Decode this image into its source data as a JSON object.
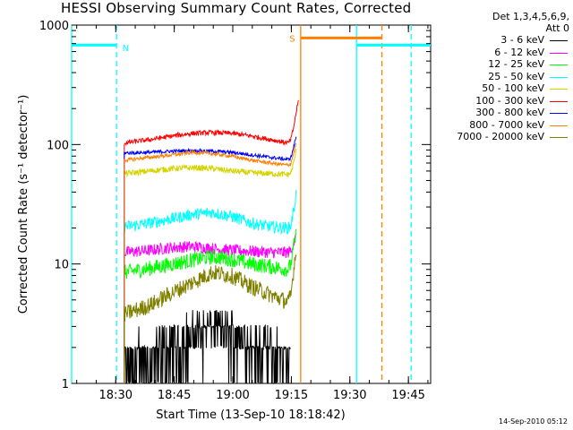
{
  "title": "HESSI Observing Summary Count Rates, Corrected",
  "legend_header": [
    "Det 1,3,4,5,6,9,",
    "Att 0"
  ],
  "datestamp": "14-Sep-2010 05:12",
  "chart_data": {
    "type": "line",
    "title": "HESSI Observing Summary Count Rates, Corrected",
    "xlabel": "Start Time (13-Sep-10 18:18:42)",
    "ylabel": "Corrected Count Rate (s⁻¹ detector⁻¹)",
    "yscale": "log",
    "ylim": [
      1,
      1000
    ],
    "xlim_minutes": [
      0,
      92
    ],
    "x_unit": "minutes after 18:18:42",
    "yticks": [
      {
        "value": 1,
        "label": "1"
      },
      {
        "value": 10,
        "label": "10"
      },
      {
        "value": 100,
        "label": "100"
      },
      {
        "value": 1000,
        "label": "1000"
      }
    ],
    "xticks": [
      {
        "t": 11.3,
        "label": "18:30"
      },
      {
        "t": 26.3,
        "label": "18:45"
      },
      {
        "t": 41.3,
        "label": "19:00"
      },
      {
        "t": 56.3,
        "label": "19:15"
      },
      {
        "t": 71.3,
        "label": "19:30"
      },
      {
        "t": 86.3,
        "label": "19:45"
      }
    ],
    "series": [
      {
        "name": "3 - 6 keV",
        "color": "#000000",
        "noise": 0.35,
        "t": [
          13.5,
          20,
          26,
          31,
          36,
          41,
          46,
          51,
          55.5,
          56.2
        ],
        "values": [
          1.4,
          1.6,
          1.9,
          2.4,
          3.0,
          2.6,
          2.1,
          1.7,
          1.5,
          1.7
        ]
      },
      {
        "name": "6 - 12 keV",
        "color": "#ff00ff",
        "noise": 0.1,
        "t": [
          13.5,
          20,
          26,
          31,
          36,
          41,
          46,
          51,
          55.5,
          56.2,
          56.9,
          57.6
        ],
        "values": [
          12.5,
          13.0,
          13.8,
          14.0,
          13.5,
          13.0,
          12.8,
          12.5,
          12.5,
          13.0,
          15.0,
          17.0
        ]
      },
      {
        "name": "12 - 25 keV",
        "color": "#00ff00",
        "noise": 0.13,
        "t": [
          13.5,
          20,
          26,
          31,
          36,
          41,
          46,
          51,
          55.5,
          56.2,
          56.9,
          57.6
        ],
        "values": [
          8.5,
          9.2,
          10.0,
          10.8,
          11.5,
          11.0,
          10.0,
          9.5,
          9.0,
          10.0,
          14.0,
          18.0
        ]
      },
      {
        "name": "25 - 50 keV",
        "color": "#00ffff",
        "noise": 0.1,
        "t": [
          13.5,
          20,
          26,
          31,
          36,
          41,
          46,
          51,
          55.5,
          56.2,
          56.9,
          57.6
        ],
        "values": [
          20.5,
          22.0,
          24.0,
          26.0,
          27.0,
          25.0,
          22.0,
          20.5,
          20.0,
          21.0,
          28.0,
          40.0
        ]
      },
      {
        "name": "50 - 100 keV",
        "color": "#d4d400",
        "noise": 0.05,
        "t": [
          13.5,
          20,
          26,
          31,
          36,
          41,
          46,
          51,
          55.5,
          56.2,
          56.9,
          57.6
        ],
        "values": [
          57.0,
          60.0,
          63.0,
          64.0,
          63.0,
          60.0,
          58.0,
          57.0,
          56.0,
          58.0,
          70.0,
          90.0
        ]
      },
      {
        "name": "100 - 300 keV",
        "color": "#ff0000",
        "noise": 0.04,
        "t": [
          13.5,
          20,
          26,
          31,
          36,
          41,
          46,
          51,
          55.5,
          56.2,
          56.9,
          57.6,
          58.2
        ],
        "values": [
          103.0,
          110.0,
          118.0,
          124.0,
          126.0,
          124.0,
          118.0,
          110.0,
          103.0,
          110.0,
          140.0,
          190.0,
          240.0
        ]
      },
      {
        "name": "300 - 800 keV",
        "color": "#0000ff",
        "noise": 0.03,
        "t": [
          13.5,
          20,
          26,
          31,
          36,
          41,
          46,
          51,
          55.5,
          56.2,
          56.9,
          57.6
        ],
        "values": [
          85.0,
          86.0,
          88.0,
          89.0,
          88.0,
          86.0,
          82.0,
          78.0,
          75.0,
          78.0,
          95.0,
          120.0
        ]
      },
      {
        "name": "800 - 7000 keV",
        "color": "#ff8000",
        "noise": 0.03,
        "t": [
          13.5,
          20,
          26,
          31,
          36,
          41,
          46,
          51,
          55.5,
          56.2,
          56.9,
          57.6
        ],
        "values": [
          74.0,
          78.0,
          82.0,
          86.0,
          84.0,
          80.0,
          74.0,
          70.0,
          67.0,
          70.0,
          85.0,
          105.0
        ]
      },
      {
        "name": "7000 - 20000 keV",
        "color": "#808000",
        "noise": 0.14,
        "t": [
          13.5,
          20,
          26,
          31,
          36,
          41,
          46,
          51,
          55.5,
          56.2,
          56.9,
          57.6
        ],
        "values": [
          3.8,
          4.5,
          5.8,
          7.0,
          8.5,
          8.0,
          6.5,
          5.5,
          4.8,
          5.5,
          9.0,
          14.0
        ]
      }
    ],
    "annotations": {
      "night_bars": [
        {
          "label": "",
          "color": "#00ffff",
          "t_start": 0,
          "t_end": 11.5,
          "level": 680
        },
        {
          "label": "",
          "color": "#00ffff",
          "t_start": 73.0,
          "t_end": 87.0,
          "level": 680
        },
        {
          "label": "",
          "color": "#00ffff",
          "t_start": 87.0,
          "t_end": 92,
          "level": 680
        }
      ],
      "saa_bars": [
        {
          "label": "",
          "color": "#ff8000",
          "t_start": 58.7,
          "t_end": 79.5,
          "level": 780
        }
      ],
      "vertical_lines": [
        {
          "t": 0.0,
          "color": "#00ffff",
          "style": "solid"
        },
        {
          "t": 11.5,
          "color": "#00ffff",
          "style": "dashed"
        },
        {
          "t": 73.0,
          "color": "#00ffff",
          "style": "solid"
        },
        {
          "t": 87.0,
          "color": "#00ffff",
          "style": "dashed"
        },
        {
          "t": 58.7,
          "color": "#ff8000",
          "style": "solid"
        },
        {
          "t": 79.5,
          "color": "#ff8000",
          "style": "dashed"
        }
      ],
      "letters": [
        {
          "text": "N",
          "color": "#00ffff",
          "t": 13.0,
          "value": 650
        },
        {
          "text": "S",
          "color": "#ff8000",
          "t": 55.8,
          "value": 780
        }
      ]
    }
  }
}
